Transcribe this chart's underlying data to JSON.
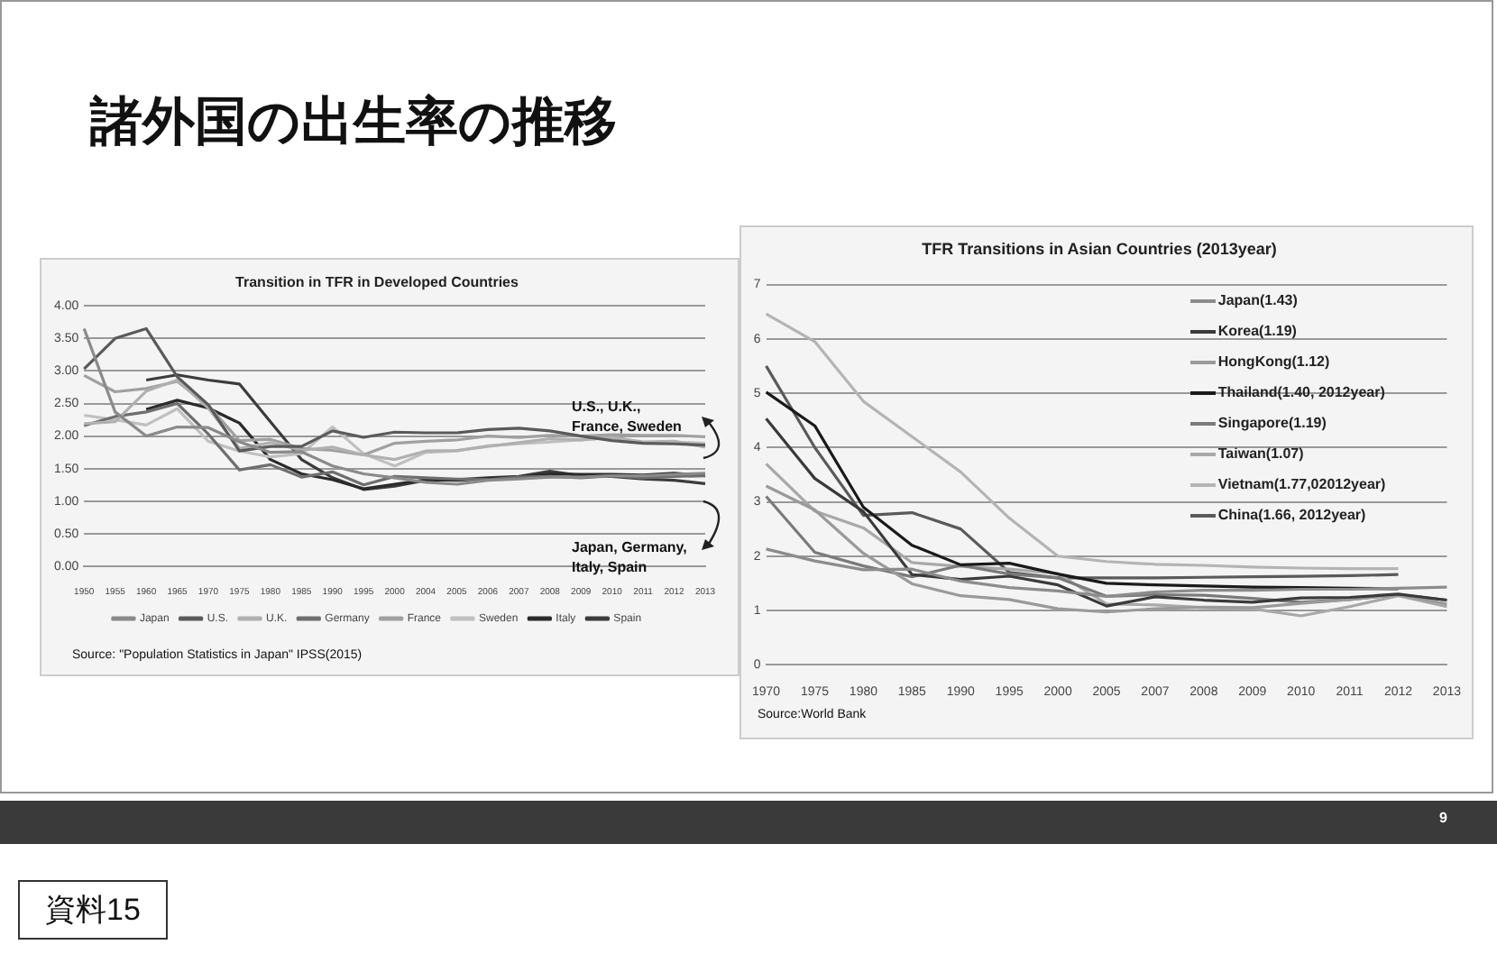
{
  "chart_data": [
    {
      "type": "line",
      "title": "Transition in TFR in Developed Countries",
      "categories": [
        "1950",
        "1955",
        "1960",
        "1965",
        "1970",
        "1975",
        "1980",
        "1985",
        "1990",
        "1995",
        "2000",
        "2004",
        "2005",
        "2006",
        "2007",
        "2008",
        "2009",
        "2010",
        "2011",
        "2012",
        "2013"
      ],
      "series": [
        {
          "name": "Japan",
          "color": "#8a8a8a",
          "values": [
            3.65,
            2.37,
            2.0,
            2.14,
            2.13,
            1.91,
            1.75,
            1.76,
            1.54,
            1.42,
            1.36,
            1.29,
            1.26,
            1.32,
            1.34,
            1.37,
            1.37,
            1.39,
            1.39,
            1.41,
            1.43
          ]
        },
        {
          "name": "U.S.",
          "color": "#5a5a5a",
          "values": [
            3.03,
            3.5,
            3.65,
            2.91,
            2.48,
            1.77,
            1.84,
            1.84,
            2.08,
            1.98,
            2.06,
            2.05,
            2.05,
            2.1,
            2.12,
            2.08,
            2.0,
            1.93,
            1.89,
            1.88,
            1.86
          ]
        },
        {
          "name": "U.K.",
          "color": "#b0b0b0",
          "values": [
            2.19,
            2.22,
            2.69,
            2.86,
            2.43,
            1.81,
            1.9,
            1.78,
            1.83,
            1.71,
            1.64,
            1.77,
            1.78,
            1.84,
            1.9,
            1.96,
            1.94,
            1.98,
            1.91,
            1.92,
            1.83
          ]
        },
        {
          "name": "Germany",
          "color": "#6e6e6e",
          "values": [
            2.16,
            2.3,
            2.37,
            2.5,
            2.03,
            1.48,
            1.56,
            1.37,
            1.45,
            1.25,
            1.38,
            1.36,
            1.34,
            1.33,
            1.37,
            1.38,
            1.36,
            1.39,
            1.36,
            1.38,
            1.39
          ]
        },
        {
          "name": "France",
          "color": "#a0a0a0",
          "values": [
            2.93,
            2.68,
            2.73,
            2.84,
            2.47,
            1.93,
            1.95,
            1.81,
            1.78,
            1.71,
            1.89,
            1.92,
            1.94,
            2.0,
            1.98,
            2.01,
            2.0,
            2.02,
            2.01,
            2.01,
            1.99
          ]
        },
        {
          "name": "Sweden",
          "color": "#c0c0c0",
          "values": [
            2.32,
            2.25,
            2.17,
            2.42,
            1.92,
            1.77,
            1.68,
            1.73,
            2.14,
            1.73,
            1.54,
            1.75,
            1.77,
            1.85,
            1.88,
            1.91,
            1.94,
            1.98,
            1.9,
            1.91,
            1.89
          ]
        },
        {
          "name": "Italy",
          "color": "#2a2a2a",
          "values": [
            null,
            null,
            2.41,
            2.55,
            2.43,
            2.2,
            1.64,
            1.42,
            1.33,
            1.19,
            1.26,
            1.33,
            1.32,
            1.35,
            1.37,
            1.42,
            1.41,
            1.41,
            1.4,
            1.43,
            1.39
          ]
        },
        {
          "name": "Spain",
          "color": "#3c3c3c",
          "values": [
            null,
            null,
            2.86,
            2.94,
            2.86,
            2.8,
            2.22,
            1.64,
            1.36,
            1.18,
            1.23,
            1.32,
            1.33,
            1.36,
            1.38,
            1.46,
            1.39,
            1.38,
            1.34,
            1.32,
            1.27
          ]
        }
      ],
      "ylim": [
        0,
        4
      ],
      "yticks": [
        {
          "value": 0,
          "label": "0.00"
        },
        {
          "value": 0.5,
          "label": "0.50"
        },
        {
          "value": 1,
          "label": "1.00"
        },
        {
          "value": 1.5,
          "label": "1.50"
        },
        {
          "value": 2,
          "label": "2.00"
        },
        {
          "value": 2.5,
          "label": "2.50"
        },
        {
          "value": 3,
          "label": "3.00"
        },
        {
          "value": 3.5,
          "label": "3.50"
        },
        {
          "value": 4,
          "label": "4.00"
        }
      ],
      "grid": "y",
      "legend": "bottom",
      "marker": "none",
      "annotations": [
        "U.S., U.K., France, Sweden",
        "Japan, Germany, Italy, Spain",
        "Source: \"Population Statistics in Japan\" IPSS(2015)",
        "諸外国の出生率の推移",
        "9",
        "資料15"
      ]
    },
    {
      "type": "line",
      "title": "TFR Transitions in Asian Countries (2013year)",
      "categories": [
        "1970",
        "1975",
        "1980",
        "1985",
        "1990",
        "1995",
        "2000",
        "2005",
        "2007",
        "2008",
        "2009",
        "2010",
        "2011",
        "2012",
        "2013"
      ],
      "series": [
        {
          "name": "Japan(1.43)",
          "color": "#8c8c8c",
          "values": [
            2.13,
            1.91,
            1.75,
            1.76,
            1.54,
            1.42,
            1.36,
            1.26,
            1.34,
            1.37,
            1.37,
            1.39,
            1.39,
            1.41,
            1.43
          ]
        },
        {
          "name": "Korea(1.19)",
          "color": "#3a3a3a",
          "values": [
            4.53,
            3.43,
            2.82,
            1.66,
            1.57,
            1.63,
            1.47,
            1.08,
            1.25,
            1.19,
            1.15,
            1.23,
            1.24,
            1.3,
            1.19
          ]
        },
        {
          "name": "HongKong(1.12)",
          "color": "#9a9a9a",
          "values": [
            3.29,
            2.85,
            2.05,
            1.49,
            1.27,
            1.2,
            1.03,
            0.97,
            1.03,
            1.06,
            1.05,
            1.13,
            1.2,
            1.29,
            1.12
          ]
        },
        {
          "name": "Thailand(1.40, 2012year)",
          "color": "#1a1a1a",
          "values": [
            5.02,
            4.4,
            2.9,
            2.2,
            1.84,
            1.87,
            1.67,
            1.5,
            1.47,
            1.45,
            1.43,
            1.42,
            1.41,
            1.4,
            null
          ]
        },
        {
          "name": "Singapore(1.19)",
          "color": "#7a7a7a",
          "values": [
            3.1,
            2.07,
            1.82,
            1.62,
            1.83,
            1.67,
            1.6,
            1.26,
            1.29,
            1.28,
            1.22,
            1.15,
            1.2,
            1.29,
            1.19
          ]
        },
        {
          "name": "Taiwan(1.07)",
          "color": "#a8a8a8",
          "values": [
            3.7,
            2.83,
            2.52,
            1.88,
            1.81,
            1.76,
            1.68,
            1.12,
            1.1,
            1.05,
            1.03,
            0.9,
            1.07,
            1.27,
            1.07
          ]
        },
        {
          "name": "Vietnam(1.77,02012year)",
          "color": "#b4b4b4",
          "values": [
            6.46,
            5.95,
            4.85,
            4.2,
            3.55,
            2.7,
            2.0,
            1.9,
            1.85,
            1.83,
            1.8,
            1.78,
            1.77,
            1.77,
            null
          ]
        },
        {
          "name": "China(1.66, 2012year)",
          "color": "#5a5a5a",
          "values": [
            5.5,
            4.0,
            2.75,
            2.8,
            2.5,
            1.7,
            1.6,
            1.6,
            1.6,
            1.61,
            1.62,
            1.63,
            1.64,
            1.66,
            null
          ]
        }
      ],
      "ylim": [
        0,
        7
      ],
      "yticks": [
        0,
        1,
        2,
        3,
        4,
        5,
        6,
        7
      ],
      "grid": "y",
      "legend": "top right",
      "marker": "none",
      "annotations": [
        "Source:World Bank"
      ]
    }
  ]
}
